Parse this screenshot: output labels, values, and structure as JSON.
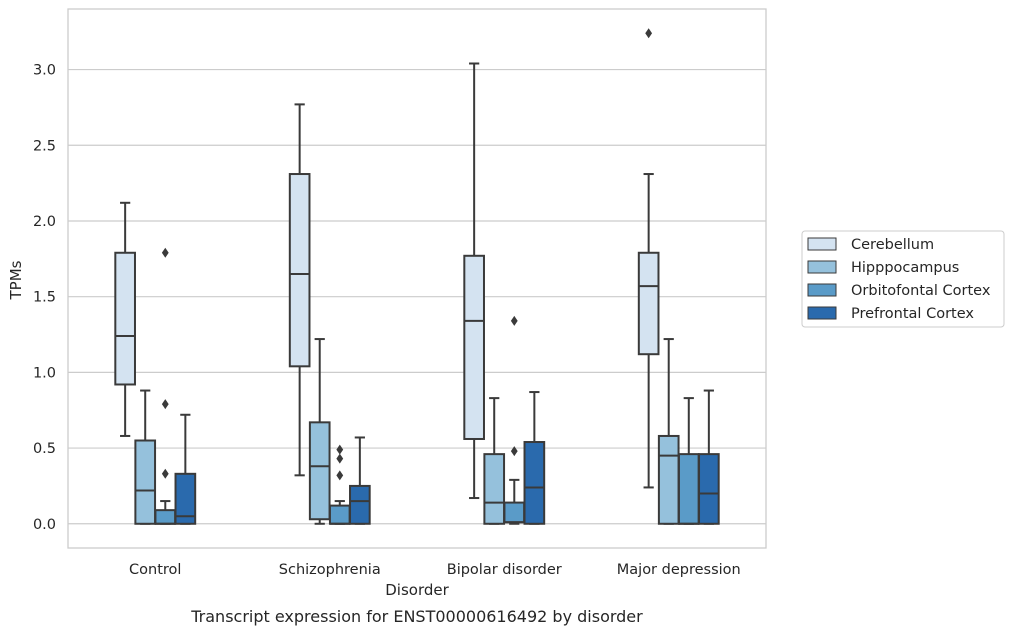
{
  "chart_data": {
    "type": "box",
    "title": "",
    "caption": "Transcript expression for ENST00000616492 by disorder",
    "xlabel": "Disorder",
    "ylabel": "TPMs",
    "ylim": [
      -0.16,
      3.4
    ],
    "yticks": [
      "0.0",
      "0.5",
      "1.0",
      "1.5",
      "2.0",
      "2.5",
      "3.0"
    ],
    "yticks_values": [
      0.0,
      0.5,
      1.0,
      1.5,
      2.0,
      2.5,
      3.0
    ],
    "grid": "horizontal",
    "legend_position": "right",
    "categories": [
      "Control",
      "Schizophrenia",
      "Bipolar disorder",
      "Major depression"
    ],
    "series": [
      {
        "name": "Cerebellum",
        "color": "#d4e3f1",
        "boxes": [
          {
            "min": 0.58,
            "q1": 0.92,
            "median": 1.24,
            "q3": 1.79,
            "max": 2.12,
            "outliers": []
          },
          {
            "min": 0.32,
            "q1": 1.04,
            "median": 1.65,
            "q3": 2.31,
            "max": 2.77,
            "outliers": []
          },
          {
            "min": 0.17,
            "q1": 0.56,
            "median": 1.34,
            "q3": 1.77,
            "max": 3.04,
            "outliers": []
          },
          {
            "min": 0.24,
            "q1": 1.12,
            "median": 1.57,
            "q3": 1.79,
            "max": 2.31,
            "outliers": [
              3.24
            ]
          }
        ]
      },
      {
        "name": "Hipppocampus",
        "color": "#95c1dc",
        "boxes": [
          {
            "min": 0.0,
            "q1": 0.0,
            "median": 0.22,
            "q3": 0.55,
            "max": 0.88,
            "outliers": []
          },
          {
            "min": 0.0,
            "q1": 0.03,
            "median": 0.38,
            "q3": 0.67,
            "max": 1.22,
            "outliers": []
          },
          {
            "min": 0.0,
            "q1": 0.0,
            "median": 0.14,
            "q3": 0.46,
            "max": 0.83,
            "outliers": []
          },
          {
            "min": 0.0,
            "q1": 0.0,
            "median": 0.45,
            "q3": 0.58,
            "max": 1.22,
            "outliers": []
          }
        ]
      },
      {
        "name": "Orbitofontal Cortex",
        "color": "#5a9bc8",
        "boxes": [
          {
            "min": 0.0,
            "q1": 0.0,
            "median": 0.0,
            "q3": 0.09,
            "max": 0.15,
            "outliers": [
              0.33,
              0.79,
              1.79
            ]
          },
          {
            "min": 0.0,
            "q1": 0.0,
            "median": 0.0,
            "q3": 0.12,
            "max": 0.15,
            "outliers": [
              0.32,
              0.43,
              0.49
            ]
          },
          {
            "min": 0.0,
            "q1": 0.01,
            "median": 0.01,
            "q3": 0.14,
            "max": 0.29,
            "outliers": [
              0.48,
              1.34
            ]
          },
          {
            "min": 0.0,
            "q1": 0.0,
            "median": 0.0,
            "q3": 0.46,
            "max": 0.83,
            "outliers": []
          }
        ]
      },
      {
        "name": "Prefrontal Cortex",
        "color": "#2a6aad",
        "boxes": [
          {
            "min": 0.0,
            "q1": 0.0,
            "median": 0.05,
            "q3": 0.33,
            "max": 0.72,
            "outliers": []
          },
          {
            "min": 0.0,
            "q1": 0.0,
            "median": 0.15,
            "q3": 0.25,
            "max": 0.57,
            "outliers": []
          },
          {
            "min": 0.0,
            "q1": 0.0,
            "median": 0.24,
            "q3": 0.54,
            "max": 0.87,
            "outliers": []
          },
          {
            "min": 0.0,
            "q1": 0.0,
            "median": 0.2,
            "q3": 0.46,
            "max": 0.88,
            "outliers": []
          }
        ]
      }
    ]
  }
}
